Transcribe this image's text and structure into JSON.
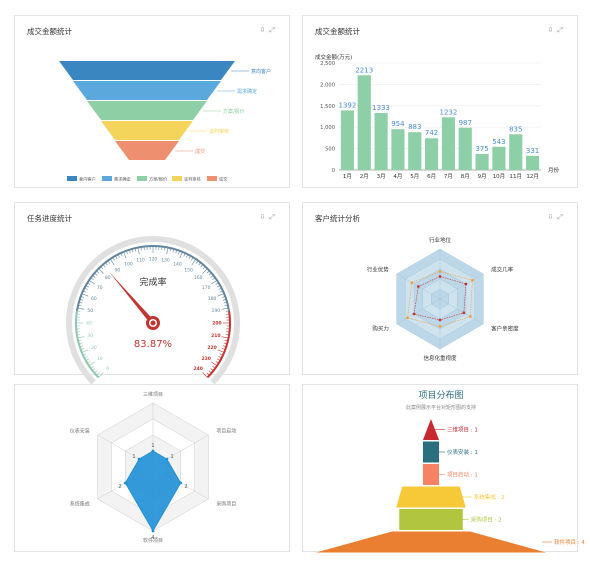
{
  "panels": {
    "p1": {
      "title": "成交金额统计"
    },
    "p2": {
      "title": "成交金额统计"
    },
    "p3": {
      "title": "任务进度统计"
    },
    "p4": {
      "title": "客户统计分析"
    }
  },
  "toolbar": {
    "download_icon": "cloud-download-icon",
    "expand_icon": "fullscreen-icon"
  },
  "chart_data": [
    {
      "id": "funnel",
      "type": "funnel",
      "stages": [
        {
          "name": "意向客户",
          "color": "#3a86c1"
        },
        {
          "name": "需求确定",
          "color": "#5ba8dc"
        },
        {
          "name": "方案/报价",
          "color": "#8fcfa5"
        },
        {
          "name": "谈判审核",
          "color": "#f5d45c"
        },
        {
          "name": "成交",
          "color": "#ee9070"
        }
      ]
    },
    {
      "id": "monthly_bar",
      "type": "bar",
      "ylabel": "成交金额(万元)",
      "xlabel": "月份",
      "categories": [
        "1月",
        "2月",
        "3月",
        "4月",
        "5月",
        "6月",
        "7月",
        "8月",
        "9月",
        "10月",
        "11月",
        "12月"
      ],
      "values": [
        1392,
        2213,
        1333,
        954,
        883,
        742,
        1232,
        987,
        375,
        543,
        835,
        331
      ],
      "ylim": [
        0,
        2500
      ],
      "yticks": [
        "0",
        "500",
        "1,000",
        "1,500",
        "2,000",
        "2,500"
      ],
      "bar_color": "#8dcfa6",
      "label_color": "#4a8ed6"
    },
    {
      "id": "gauge",
      "type": "gauge",
      "label": "完成率",
      "value_text": "83.87%",
      "value": 83.87,
      "range": [
        0,
        240
      ],
      "tick_labels": [
        "0",
        "10",
        "20",
        "30",
        "40",
        "50",
        "60",
        "70",
        "80",
        "90",
        "100",
        "110",
        "120",
        "130",
        "140",
        "150",
        "160",
        "170",
        "180",
        "190",
        "200",
        "210",
        "220",
        "230",
        "240"
      ],
      "band_colors": [
        "#91c7ae",
        "#63869e",
        "#c23531"
      ]
    },
    {
      "id": "customer_radar",
      "type": "radar",
      "axes": [
        "行业地位",
        "成交几率",
        "客户亲密度",
        "信息化重视度",
        "购买力",
        "行业优势"
      ],
      "series": [
        {
          "values": [
            0.55,
            0.75,
            0.7,
            0.55,
            0.75,
            0.65
          ],
          "color": "#f0a040"
        },
        {
          "values": [
            0.45,
            0.6,
            0.55,
            0.42,
            0.6,
            0.5
          ],
          "color": "#c23531"
        }
      ]
    },
    {
      "id": "project_radar",
      "type": "radar",
      "axes": [
        "三维项目",
        "项目启动",
        "采购项目",
        "软件项目",
        "系统集成",
        "仪表安装"
      ],
      "series": [
        {
          "values": [
            0.25,
            0.25,
            0.5,
            1.0,
            0.5,
            0.25
          ],
          "labels": [
            "1",
            "1",
            "2",
            "4",
            "2",
            "1"
          ],
          "color": "#1f8fd6"
        }
      ]
    },
    {
      "id": "project_pyramid",
      "type": "funnel",
      "title": "项目分布图",
      "subtitle": "此案例展示平台对矩形图的支持",
      "items": [
        {
          "label": "三维项目 : 1",
          "value": 1,
          "color": "#c62a2f"
        },
        {
          "label": "仪表安装 : 1",
          "value": 1,
          "color": "#2a6f7d"
        },
        {
          "label": "项目启动 : 1",
          "value": 1,
          "color": "#f78263"
        },
        {
          "label": "系统集成 : 2",
          "value": 2,
          "color": "#f7c838"
        },
        {
          "label": "采购项目 : 2",
          "value": 2,
          "color": "#b2c53f"
        },
        {
          "label": "软件项目 : 4",
          "value": 4,
          "color": "#ea7e31"
        }
      ]
    }
  ]
}
